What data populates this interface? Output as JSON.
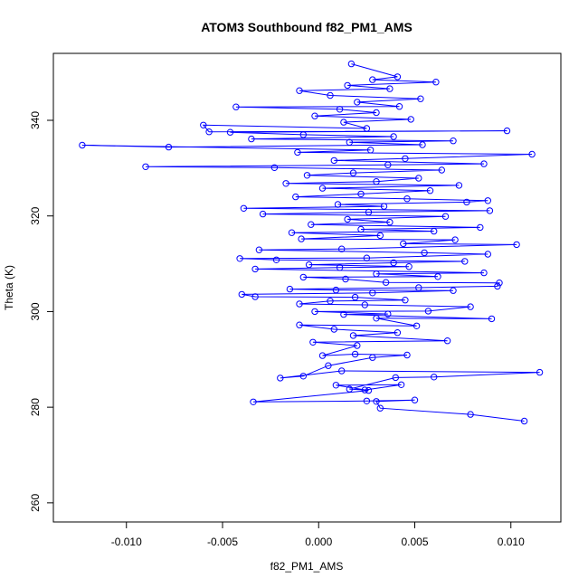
{
  "chart_data": {
    "type": "line",
    "title": "ATOM3 Southbound f82_PM1_AMS",
    "xlabel": "f82_PM1_AMS",
    "ylabel": "Theta (K)",
    "xlim": [
      -0.0138,
      0.0126
    ],
    "ylim": [
      256,
      354
    ],
    "x_ticks": [
      -0.01,
      -0.005,
      0.0,
      0.005,
      0.01
    ],
    "x_tick_labels": [
      "-0.010",
      "-0.005",
      "0.000",
      "0.005",
      "0.010"
    ],
    "y_ticks": [
      260,
      280,
      300,
      320,
      340
    ],
    "y_tick_labels": [
      "260",
      "280",
      "300",
      "320",
      "340"
    ],
    "grid": false,
    "series": [
      {
        "color": "#0000ff",
        "marker": "open-circle",
        "points": [
          [
            0.0107,
            277.1
          ],
          [
            0.0079,
            278.5
          ],
          [
            0.0032,
            279.8
          ],
          [
            0.003,
            281.2
          ],
          [
            0.005,
            281.5
          ],
          [
            0.0025,
            281.3
          ],
          [
            -0.0034,
            281.1
          ],
          [
            0.0026,
            283.5
          ],
          [
            0.0009,
            284.6
          ],
          [
            0.0043,
            284.7
          ],
          [
            0.0024,
            283.6
          ],
          [
            0.0016,
            283.8
          ],
          [
            0.004,
            286.2
          ],
          [
            0.006,
            286.3
          ],
          [
            0.0115,
            287.3
          ],
          [
            0.0012,
            287.6
          ],
          [
            -0.002,
            286.1
          ],
          [
            -0.0008,
            286.5
          ],
          [
            0.0005,
            288.7
          ],
          [
            0.0028,
            290.4
          ],
          [
            0.0046,
            290.9
          ],
          [
            0.0019,
            291.1
          ],
          [
            0.0002,
            290.8
          ],
          [
            0.002,
            292.9
          ],
          [
            -0.0003,
            293.6
          ],
          [
            0.0067,
            293.9
          ],
          [
            0.0018,
            295.0
          ],
          [
            0.0041,
            295.6
          ],
          [
            0.0008,
            296.3
          ],
          [
            -0.001,
            297.2
          ],
          [
            0.0051,
            297.0
          ],
          [
            0.003,
            298.6
          ],
          [
            0.009,
            298.5
          ],
          [
            0.0013,
            299.4
          ],
          [
            0.0036,
            299.5
          ],
          [
            -0.0002,
            300.0
          ],
          [
            0.0057,
            300.1
          ],
          [
            0.0079,
            301.0
          ],
          [
            0.0024,
            301.4
          ],
          [
            -0.001,
            301.6
          ],
          [
            0.0006,
            302.2
          ],
          [
            0.0045,
            302.4
          ],
          [
            0.0019,
            303.0
          ],
          [
            -0.0033,
            303.1
          ],
          [
            -0.004,
            303.6
          ],
          [
            0.0028,
            303.9
          ],
          [
            0.007,
            304.4
          ],
          [
            0.0009,
            304.5
          ],
          [
            -0.0015,
            304.7
          ],
          [
            0.0052,
            305.0
          ],
          [
            0.0093,
            305.3
          ],
          [
            0.0094,
            306.0
          ],
          [
            0.0035,
            306.1
          ],
          [
            0.0014,
            306.8
          ],
          [
            -0.0008,
            307.2
          ],
          [
            0.0062,
            307.3
          ],
          [
            0.003,
            307.9
          ],
          [
            0.0086,
            308.1
          ],
          [
            -0.0033,
            308.9
          ],
          [
            0.0011,
            309.2
          ],
          [
            0.0047,
            309.4
          ],
          [
            -0.0005,
            309.8
          ],
          [
            0.0039,
            310.2
          ],
          [
            0.0076,
            310.5
          ],
          [
            -0.0022,
            310.8
          ],
          [
            -0.0041,
            311.1
          ],
          [
            0.0025,
            311.2
          ],
          [
            0.0088,
            312.0
          ],
          [
            0.0055,
            312.3
          ],
          [
            -0.0031,
            312.9
          ],
          [
            0.0012,
            313.1
          ],
          [
            0.0103,
            314.0
          ],
          [
            0.0044,
            314.2
          ],
          [
            0.0071,
            315.0
          ],
          [
            -0.0009,
            315.2
          ],
          [
            0.0032,
            315.9
          ],
          [
            -0.0014,
            316.5
          ],
          [
            0.006,
            316.8
          ],
          [
            0.0022,
            317.2
          ],
          [
            0.0084,
            317.6
          ],
          [
            -0.0004,
            318.2
          ],
          [
            0.0037,
            318.7
          ],
          [
            0.0015,
            319.3
          ],
          [
            0.0066,
            319.9
          ],
          [
            -0.0029,
            320.4
          ],
          [
            0.0026,
            320.8
          ],
          [
            0.0089,
            321.1
          ],
          [
            -0.0039,
            321.6
          ],
          [
            0.0034,
            322.0
          ],
          [
            0.001,
            322.4
          ],
          [
            0.0077,
            322.9
          ],
          [
            0.0088,
            323.2
          ],
          [
            0.0046,
            323.6
          ],
          [
            -0.0012,
            324.0
          ],
          [
            0.0022,
            324.6
          ],
          [
            0.0058,
            325.3
          ],
          [
            0.0002,
            325.8
          ],
          [
            0.0073,
            326.4
          ],
          [
            -0.0017,
            326.8
          ],
          [
            0.003,
            327.2
          ],
          [
            0.0052,
            327.9
          ],
          [
            -0.0006,
            328.5
          ],
          [
            0.0018,
            329.0
          ],
          [
            0.0064,
            329.6
          ],
          [
            -0.0023,
            330.1
          ],
          [
            -0.009,
            330.3
          ],
          [
            0.0036,
            330.7
          ],
          [
            0.0086,
            330.9
          ],
          [
            0.0008,
            331.6
          ],
          [
            0.0045,
            332.0
          ],
          [
            0.0111,
            332.9
          ],
          [
            -0.0011,
            333.3
          ],
          [
            0.0027,
            333.8
          ],
          [
            -0.0123,
            334.8
          ],
          [
            -0.0078,
            334.4
          ],
          [
            0.0054,
            334.9
          ],
          [
            0.0016,
            335.4
          ],
          [
            0.007,
            335.7
          ],
          [
            -0.0035,
            336.1
          ],
          [
            0.0039,
            336.6
          ],
          [
            -0.0008,
            337.0
          ],
          [
            -0.0046,
            337.5
          ],
          [
            0.0098,
            337.8
          ],
          [
            -0.0057,
            337.6
          ],
          [
            -0.006,
            339.0
          ],
          [
            0.0025,
            338.3
          ],
          [
            0.0013,
            339.6
          ],
          [
            0.0048,
            340.2
          ],
          [
            -0.0002,
            340.9
          ],
          [
            0.003,
            341.6
          ],
          [
            0.0011,
            342.3
          ],
          [
            -0.0043,
            342.8
          ],
          [
            0.0042,
            342.9
          ],
          [
            0.002,
            343.8
          ],
          [
            0.0053,
            344.5
          ],
          [
            0.0006,
            345.2
          ],
          [
            -0.001,
            346.2
          ],
          [
            0.0037,
            346.6
          ],
          [
            0.0015,
            347.3
          ],
          [
            0.0061,
            348.0
          ],
          [
            0.0028,
            348.5
          ],
          [
            0.0041,
            349.1
          ],
          [
            0.0017,
            351.8
          ]
        ]
      }
    ]
  }
}
